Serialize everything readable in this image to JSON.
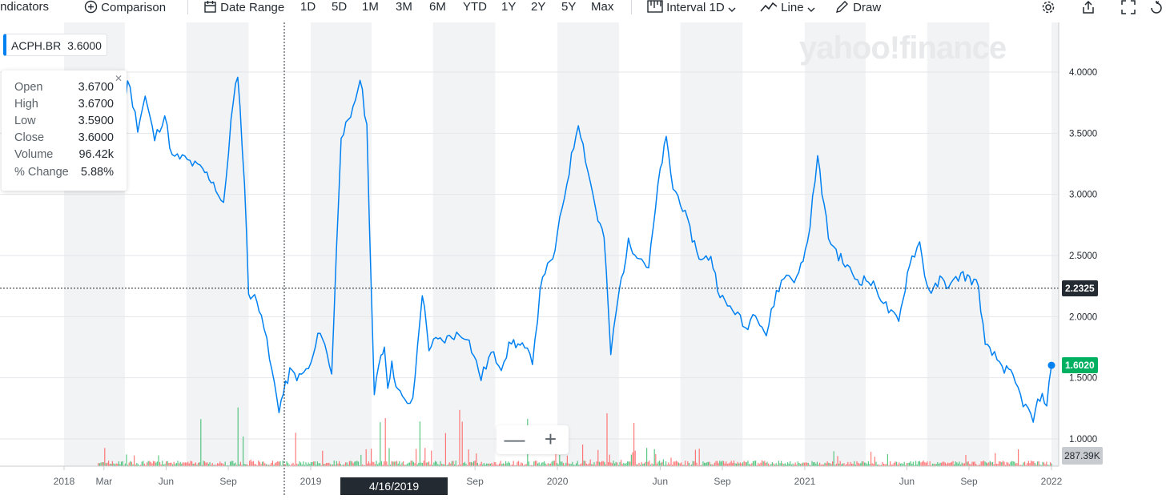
{
  "toolbar": {
    "indicators_label": "Indicators",
    "comparison_label": "Comparison",
    "date_range_label": "Date Range",
    "ranges": [
      "1D",
      "5D",
      "1M",
      "3M",
      "6M",
      "YTD",
      "1Y",
      "2Y",
      "5Y",
      "Max"
    ],
    "interval_label": "Interval",
    "interval_value": "1D",
    "line_label": "Line",
    "draw_label": "Draw"
  },
  "legend": {
    "symbol": "ACPH.BR",
    "price": "3.6000"
  },
  "ohlc": {
    "rows": [
      {
        "label": "Open",
        "value": "3.6700"
      },
      {
        "label": "High",
        "value": "3.6700"
      },
      {
        "label": "Low",
        "value": "3.5900"
      },
      {
        "label": "Close",
        "value": "3.6000"
      },
      {
        "label": "Volume",
        "value": "96.42k"
      },
      {
        "label": "% Change",
        "value": "5.88%"
      }
    ]
  },
  "watermark": "yahoo!finance",
  "crosshair": {
    "date_label": "4/16/2019",
    "price_label": "2.2325",
    "price": 2.2325
  },
  "last_price": {
    "label": "1.6020",
    "value": 1.602
  },
  "volume_label": "287.39K",
  "colors": {
    "line": "#0081f2",
    "up": "#21b65a",
    "down": "#ff4c4c",
    "last_tag": "#00b061",
    "crosshair_tag": "#232a31"
  },
  "chart_data": {
    "type": "line",
    "title": "",
    "xlabel": "",
    "ylabel": "",
    "ylim": [
      0.9,
      4.3
    ],
    "grid": true,
    "x_tick_labels": [
      "2018",
      "Mar",
      "Jun",
      "Sep",
      "2019",
      "Sep",
      "2020",
      "Jun",
      "Sep",
      "2021",
      "Jun",
      "Sep",
      "2022"
    ],
    "y_tick_labels": [
      "1.0000",
      "1.5000",
      "2.0000",
      "2.5000",
      "3.0000",
      "3.5000",
      "4.0000"
    ],
    "series": [
      {
        "x": [
          "2018-02-01",
          "2018-02-20",
          "2018-03-05",
          "2018-03-20",
          "2018-04-05",
          "2018-04-20",
          "2018-05-01",
          "2018-05-15",
          "2018-05-30",
          "2018-06-10",
          "2018-06-25",
          "2018-07-10",
          "2018-07-25",
          "2018-08-10",
          "2018-08-25",
          "2018-09-05",
          "2018-09-15",
          "2018-09-25",
          "2018-10-01",
          "2018-10-10",
          "2018-10-20",
          "2018-11-01",
          "2018-11-15",
          "2018-12-01",
          "2018-12-15",
          "2019-01-01",
          "2019-01-15",
          "2019-02-01",
          "2019-02-15",
          "2019-03-01",
          "2019-03-15",
          "2019-03-25",
          "2019-04-05",
          "2019-04-15",
          "2019-04-20",
          "2019-04-25",
          "2019-05-01",
          "2019-05-10",
          "2019-05-20",
          "2019-06-01",
          "2019-06-15",
          "2019-06-25",
          "2019-07-05",
          "2019-07-15",
          "2019-08-01",
          "2019-08-20",
          "2019-09-10",
          "2019-09-25",
          "2019-10-10",
          "2019-10-25",
          "2019-11-10",
          "2019-11-25",
          "2019-12-10",
          "2019-12-25",
          "2020-01-15",
          "2020-02-01",
          "2020-02-15",
          "2020-03-01",
          "2020-03-10",
          "2020-03-20",
          "2020-04-01",
          "2020-04-15",
          "2020-05-01",
          "2020-05-15",
          "2020-06-01",
          "2020-06-10",
          "2020-06-20",
          "2020-07-01",
          "2020-07-15",
          "2020-08-01",
          "2020-08-15",
          "2020-08-25",
          "2020-09-05",
          "2020-09-20",
          "2020-10-05",
          "2020-10-20",
          "2020-11-05",
          "2020-11-20",
          "2020-12-05",
          "2020-12-20",
          "2021-01-05",
          "2021-01-20",
          "2021-02-05",
          "2021-02-20",
          "2021-03-05",
          "2021-03-20",
          "2021-04-05",
          "2021-04-20",
          "2021-05-05",
          "2021-05-20",
          "2021-06-05",
          "2021-06-20",
          "2021-07-01",
          "2021-07-10",
          "2021-07-20",
          "2021-08-05",
          "2021-08-20",
          "2021-09-05",
          "2021-09-15",
          "2021-09-25",
          "2021-10-05",
          "2021-10-20",
          "2021-11-05",
          "2021-11-20",
          "2021-12-05",
          "2021-12-15",
          "2021-12-25",
          "2022-01-01"
        ],
        "y": [
          3.55,
          3.25,
          3.6,
          3.05,
          3.95,
          3.55,
          3.8,
          3.45,
          3.65,
          3.3,
          3.3,
          3.25,
          3.2,
          3.1,
          2.9,
          3.6,
          4.0,
          3.1,
          2.2,
          2.15,
          2.05,
          1.65,
          1.25,
          1.55,
          1.5,
          1.6,
          1.9,
          1.55,
          3.5,
          3.6,
          3.95,
          3.55,
          1.35,
          1.7,
          1.75,
          1.45,
          1.6,
          1.4,
          1.3,
          1.3,
          2.2,
          1.75,
          1.8,
          1.8,
          1.85,
          1.85,
          1.5,
          1.7,
          1.6,
          1.8,
          1.75,
          1.65,
          2.35,
          2.45,
          3.1,
          3.6,
          3.2,
          2.8,
          2.65,
          1.7,
          2.2,
          2.6,
          2.5,
          2.4,
          3.2,
          3.45,
          3.05,
          2.95,
          2.7,
          2.45,
          2.5,
          2.25,
          2.1,
          2.05,
          1.9,
          2.05,
          1.85,
          2.2,
          2.35,
          2.3,
          2.6,
          3.3,
          2.65,
          2.5,
          2.4,
          2.3,
          2.3,
          2.2,
          2.05,
          1.95,
          2.45,
          2.6,
          2.25,
          2.2,
          2.3,
          2.25,
          2.35,
          2.3,
          2.25,
          1.75,
          1.7,
          1.6,
          1.5,
          1.3,
          1.15,
          1.35,
          1.3,
          1.6
        ]
      }
    ],
    "volume": {
      "unit": "shares (relative)",
      "up_color": "#21b65a",
      "down_color": "#ff4c4c"
    }
  }
}
